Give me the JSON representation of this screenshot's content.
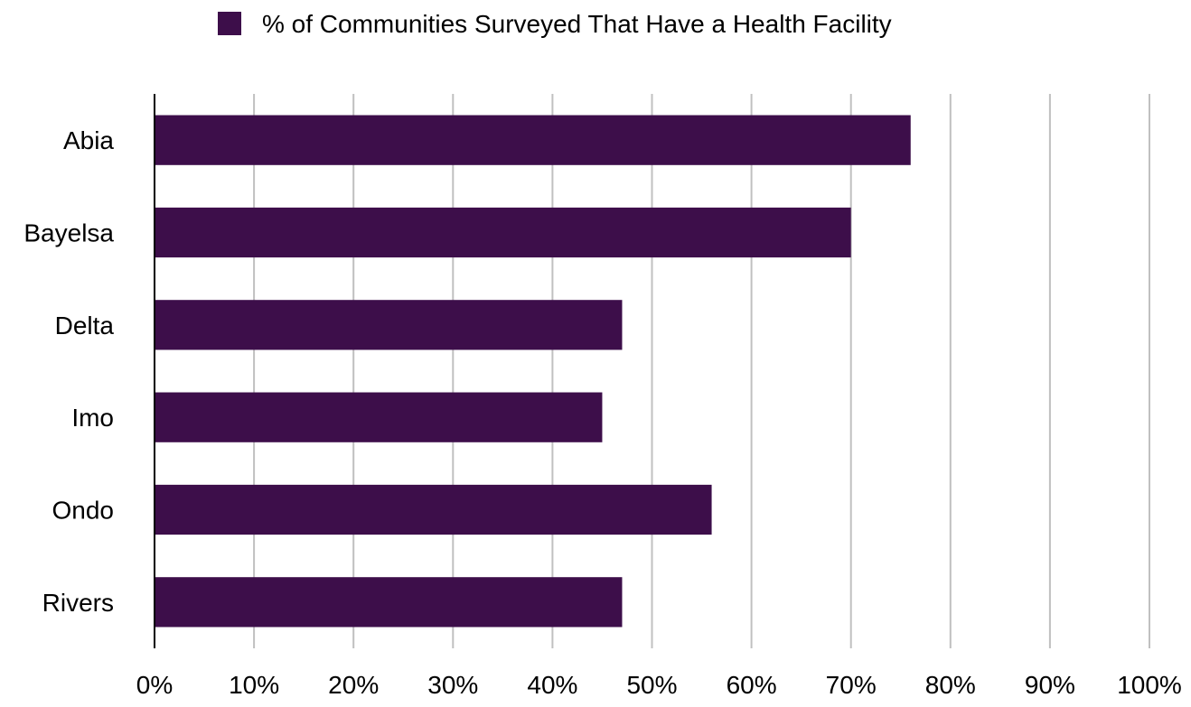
{
  "chart_data": {
    "type": "bar",
    "orientation": "horizontal",
    "categories": [
      "Abia",
      "Bayelsa",
      "Delta",
      "Imo",
      "Ondo",
      "Rivers"
    ],
    "series": [
      {
        "name": "% of Communities Surveyed That Have a Health Facility",
        "values": [
          76,
          70,
          47,
          45,
          56,
          47
        ],
        "color": "#3d0e4a"
      }
    ],
    "xlim": [
      0,
      100
    ],
    "x_ticks": [
      "0%",
      "10%",
      "20%",
      "30%",
      "40%",
      "50%",
      "60%",
      "70%",
      "80%",
      "90%",
      "100%"
    ],
    "grid": "vertical",
    "grid_color": "#c0c0c0",
    "axis_color": "#000000",
    "legend_position": "top-center",
    "title": "",
    "xlabel": "",
    "ylabel": ""
  }
}
